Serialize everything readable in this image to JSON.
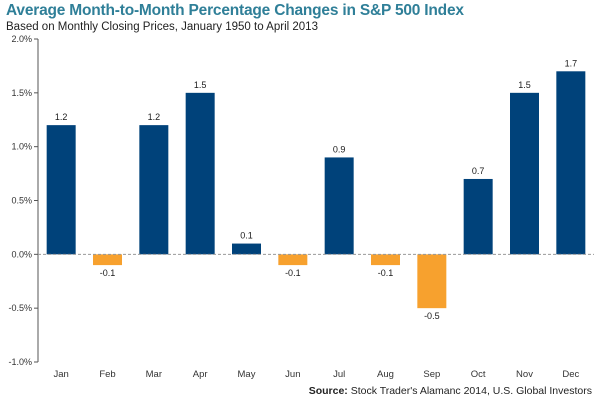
{
  "title": "Average Month-to-Month Percentage Changes in S&P 500 Index",
  "subtitle": "Based on Monthly Closing Prices, January 1950 to April 2013",
  "source_label": "Source:",
  "source_text": "Stock Trader's Alamanc 2014, U.S. Global Investors",
  "colors": {
    "positive": "#00427a",
    "negative": "#f7a12e",
    "title": "#2f7f98",
    "zero_line": "#999999"
  },
  "chart_data": {
    "type": "bar",
    "categories": [
      "Jan",
      "Feb",
      "Mar",
      "Apr",
      "May",
      "Jun",
      "Jul",
      "Aug",
      "Sep",
      "Oct",
      "Nov",
      "Dec"
    ],
    "values": [
      1.2,
      -0.1,
      1.2,
      1.5,
      0.1,
      -0.1,
      0.9,
      -0.1,
      -0.5,
      0.7,
      1.5,
      1.7
    ],
    "data_labels": [
      "1.2",
      "-0.1",
      "1.2",
      "1.5",
      "0.1",
      "-0.1",
      "0.9",
      "-0.1",
      "-0.5",
      "0.7",
      "1.5",
      "1.7"
    ],
    "y_ticks": [
      2.0,
      1.5,
      1.0,
      0.5,
      0.0,
      -0.5,
      -1.0
    ],
    "y_tick_labels": [
      "2.0%",
      "1.5%",
      "1.0%",
      "0.5%",
      "0.0%",
      "-0.5%",
      "-1.0%"
    ],
    "ylim": [
      -1.0,
      2.0
    ],
    "grid": false,
    "legend": "none"
  }
}
